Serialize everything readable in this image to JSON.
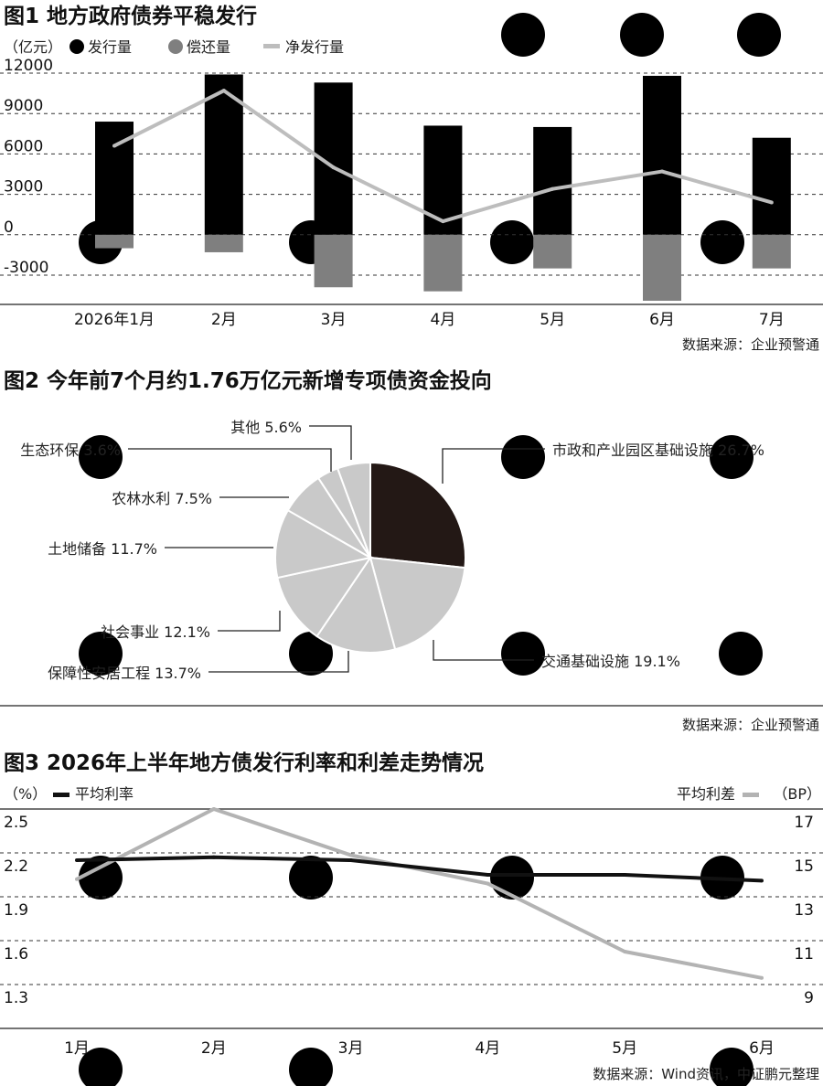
{
  "chart_data": [
    {
      "type": "bar",
      "title": "图1 地方政府债券平稳发行",
      "unit": "（亿元）",
      "categories": [
        "2026年1月",
        "2月",
        "3月",
        "4月",
        "5月",
        "6月",
        "7月"
      ],
      "series": [
        {
          "name": "发行量",
          "kind": "bar",
          "color": "#000000",
          "values": [
            8400,
            11900,
            11300,
            8100,
            8000,
            11800,
            7200
          ]
        },
        {
          "name": "偿还量",
          "kind": "bar",
          "color": "#7f7f7f",
          "values": [
            -1000,
            -1300,
            -3900,
            -4200,
            -2500,
            -4900,
            -2500
          ]
        },
        {
          "name": "净发行量",
          "kind": "line",
          "color": "#bdbdbd",
          "values": [
            6600,
            10700,
            5000,
            1000,
            3400,
            4700,
            2400
          ]
        }
      ],
      "yticks": [
        "12000",
        "9000",
        "6000",
        "3000",
        "0",
        "-3000"
      ],
      "ylim": [
        -4900,
        12300
      ],
      "source": "数据来源：企业预警通"
    },
    {
      "type": "pie",
      "title": "图2 今年前7个月约1.76万亿元新增专项债资金投向",
      "slices": [
        {
          "label": "市政和产业园区基础设施",
          "value": 26.7,
          "display": "市政和产业园区基础设施 26.7%",
          "color": "#231815"
        },
        {
          "label": "交通基础设施",
          "value": 19.1,
          "display": "交通基础设施 19.1%",
          "color": "#c9c9c9"
        },
        {
          "label": "保障性安居工程",
          "value": 13.7,
          "display": "保障性安居工程 13.7%",
          "color": "#c9c9c9"
        },
        {
          "label": "社会事业",
          "value": 12.1,
          "display": "社会事业 12.1%",
          "color": "#c9c9c9"
        },
        {
          "label": "土地储备",
          "value": 11.7,
          "display": "土地储备 11.7%",
          "color": "#c9c9c9"
        },
        {
          "label": "农林水利",
          "value": 7.5,
          "display": "农林水利 7.5%",
          "color": "#c9c9c9"
        },
        {
          "label": "生态环保",
          "value": 3.6,
          "display": "生态环保 3.6%",
          "color": "#c9c9c9"
        },
        {
          "label": "其他",
          "value": 5.6,
          "display": "其他 5.6%",
          "color": "#c9c9c9"
        }
      ],
      "source": "数据来源：企业预警通"
    },
    {
      "type": "line",
      "title": "图3 2026年上半年地方债发行利率和利差走势情况",
      "categories": [
        "1月",
        "2月",
        "3月",
        "4月",
        "5月",
        "6月"
      ],
      "series": [
        {
          "name": "平均利率",
          "axis": "left",
          "unit": "（%）",
          "color": "#111111",
          "values": [
            2.15,
            2.17,
            2.15,
            2.05,
            2.05,
            2.01
          ]
        },
        {
          "name": "平均利差",
          "axis": "right",
          "unit": "（BP）",
          "color": "#b3b3b3",
          "values": [
            13.8,
            17.1,
            14.9,
            13.6,
            10.5,
            9.3
          ]
        }
      ],
      "left_ticks": [
        "2.5",
        "2.2",
        "1.9",
        "1.6",
        "1.3"
      ],
      "left_ylim": [
        1.3,
        2.5
      ],
      "right_ticks": [
        "17",
        "15",
        "13",
        "11",
        "9"
      ],
      "right_ylim": [
        5,
        17
      ],
      "source": "数据来源：Wind资讯，中证鹏元整理"
    }
  ]
}
